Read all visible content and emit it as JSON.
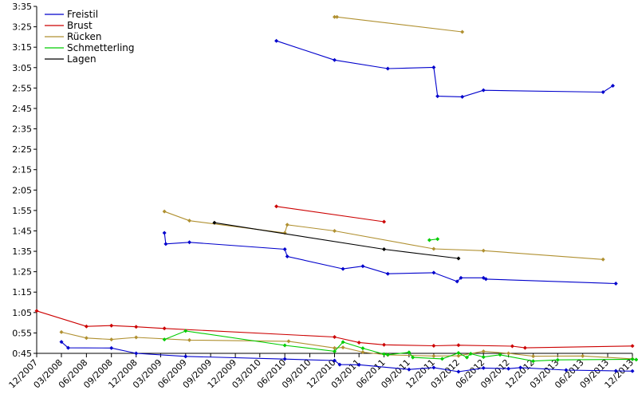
{
  "chart_data": {
    "type": "line",
    "title": "",
    "xlabel": "",
    "ylabel": "",
    "x_range": [
      "2007-12-01",
      "2013-12-01"
    ],
    "y_range_seconds": [
      45,
      215
    ],
    "y_ticks": [
      "0:45",
      "0:55",
      "1:05",
      "1:15",
      "1:25",
      "1:35",
      "1:45",
      "1:55",
      "2:05",
      "2:15",
      "2:25",
      "2:35",
      "2:45",
      "2:55",
      "3:05",
      "3:15",
      "3:25",
      "3:35"
    ],
    "x_ticks": [
      "12/2007",
      "03/2008",
      "06/2008",
      "09/2008",
      "12/2008",
      "03/2009",
      "06/2009",
      "09/2009",
      "12/2009",
      "03/2010",
      "06/2010",
      "09/2010",
      "12/2010",
      "03/2011",
      "06/2011",
      "09/2011",
      "12/2011",
      "03/2012",
      "06/2012",
      "09/2012",
      "12/2012",
      "03/2013",
      "06/2013",
      "09/2013",
      "12/2013"
    ],
    "grid": false,
    "legend_position": "top-left",
    "series": [
      {
        "name": "Freistil",
        "color": "#0000cc",
        "lines": [
          {
            "points": [
              [
                "2008-03-01",
                50.6
              ],
              [
                "2008-03-26",
                47.7
              ],
              [
                "2008-09-01",
                47.6
              ],
              [
                "2008-12-01",
                45.0
              ],
              [
                "2009-06-01",
                43.5
              ],
              [
                "2010-06-01",
                42.2
              ],
              [
                "2010-12-01",
                41.5
              ],
              [
                "2010-12-20",
                39.5
              ],
              [
                "2011-03-01",
                39.4
              ],
              [
                "2011-09-01",
                37.1
              ],
              [
                "2011-12-01",
                38.0
              ],
              [
                "2012-03-01",
                36.0
              ],
              [
                "2012-06-01",
                37.8
              ],
              [
                "2012-09-01",
                37.5
              ],
              [
                "2012-10-15",
                38.0
              ],
              [
                "2013-04-01",
                36.8
              ],
              [
                "2013-10-01",
                36.4
              ],
              [
                "2013-12-01",
                36.3
              ]
            ]
          },
          {
            "points": [
              [
                "2009-03-15",
                104.0
              ],
              [
                "2009-03-20",
                98.6
              ],
              [
                "2009-06-15",
                99.4
              ],
              [
                "2010-06-01",
                96.0
              ],
              [
                "2010-06-10",
                92.5
              ],
              [
                "2011-01-01",
                86.4
              ],
              [
                "2011-03-15",
                87.7
              ],
              [
                "2011-06-15",
                84.0
              ],
              [
                "2011-12-01",
                84.5
              ],
              [
                "2012-02-25",
                80.2
              ],
              [
                "2012-03-10",
                82.0
              ],
              [
                "2012-06-01",
                82.0
              ],
              [
                "2012-06-10",
                81.4
              ],
              [
                "2013-10-01",
                79.2
              ]
            ]
          },
          {
            "points": [
              [
                "2010-05-01",
                198.1
              ],
              [
                "2010-12-01",
                188.7
              ],
              [
                "2011-06-15",
                184.5
              ],
              [
                "2011-12-01",
                185.1
              ],
              [
                "2011-12-15",
                171.0
              ],
              [
                "2012-03-15",
                170.7
              ],
              [
                "2012-06-01",
                173.9
              ],
              [
                "2013-08-15",
                173.0
              ],
              [
                "2013-09-20",
                176.1
              ]
            ]
          }
        ]
      },
      {
        "name": "Brust",
        "color": "#cc0000",
        "lines": [
          {
            "points": [
              [
                "2007-12-01",
                65.8
              ],
              [
                "2008-06-01",
                58.2
              ],
              [
                "2008-09-01",
                58.6
              ],
              [
                "2008-12-01",
                58.0
              ],
              [
                "2009-03-15",
                57.2
              ],
              [
                "2010-12-01",
                53.0
              ],
              [
                "2011-03-01",
                50.3
              ],
              [
                "2011-06-01",
                49.2
              ],
              [
                "2011-12-01",
                48.7
              ],
              [
                "2012-03-01",
                49.0
              ],
              [
                "2012-09-15",
                48.5
              ],
              [
                "2012-11-01",
                47.7
              ],
              [
                "2013-12-01",
                48.6
              ]
            ]
          },
          {
            "points": [
              [
                "2010-05-01",
                117.0
              ],
              [
                "2011-06-01",
                109.5
              ]
            ]
          }
        ]
      },
      {
        "name": "Rücken",
        "color": "#b09030",
        "lines": [
          {
            "points": [
              [
                "2008-03-01",
                55.4
              ],
              [
                "2008-06-01",
                52.5
              ],
              [
                "2008-09-01",
                51.8
              ],
              [
                "2008-12-01",
                52.8
              ],
              [
                "2009-06-15",
                51.5
              ],
              [
                "2010-06-15",
                50.9
              ],
              [
                "2010-12-01",
                47.6
              ],
              [
                "2011-01-01",
                47.9
              ],
              [
                "2011-03-15",
                45.6
              ],
              [
                "2011-06-15",
                44.2
              ],
              [
                "2011-12-01",
                43.7
              ],
              [
                "2012-03-01",
                43.8
              ],
              [
                "2012-06-01",
                46.0
              ],
              [
                "2012-09-01",
                45.0
              ],
              [
                "2012-12-01",
                43.6
              ],
              [
                "2013-06-01",
                43.7
              ],
              [
                "2013-12-01",
                42.3
              ]
            ]
          },
          {
            "points": [
              [
                "2009-03-15",
                114.5
              ],
              [
                "2009-06-15",
                110.0
              ],
              [
                "2010-06-01",
                104.0
              ],
              [
                "2010-06-10",
                108.0
              ],
              [
                "2010-12-01",
                105.0
              ],
              [
                "2011-12-01",
                96.2
              ],
              [
                "2012-06-01",
                95.3
              ],
              [
                "2013-08-15",
                91.0
              ]
            ]
          },
          {
            "points": [
              [
                "2010-12-01",
                209.8
              ],
              [
                "2010-12-10",
                209.8
              ],
              [
                "2012-03-15",
                202.5
              ]
            ]
          }
        ]
      },
      {
        "name": "Schmetterling",
        "color": "#00cc00",
        "lines": [
          {
            "points": [
              [
                "2009-03-15",
                51.8
              ],
              [
                "2009-06-01",
                56.0
              ],
              [
                "2010-06-01",
                48.9
              ],
              [
                "2010-12-01",
                46.0
              ],
              [
                "2011-01-01",
                50.5
              ],
              [
                "2011-03-15",
                47.5
              ],
              [
                "2011-06-01",
                44.6
              ],
              [
                "2011-06-15",
                44.3
              ],
              [
                "2011-09-01",
                45.5
              ],
              [
                "2011-09-15",
                43.0
              ],
              [
                "2012-01-01",
                42.3
              ],
              [
                "2012-03-01",
                45.2
              ],
              [
                "2012-04-01",
                43.0
              ],
              [
                "2012-04-15",
                44.8
              ],
              [
                "2012-06-01",
                43.2
              ],
              [
                "2012-08-01",
                44.3
              ],
              [
                "2012-12-01",
                41.2
              ],
              [
                "2013-03-01",
                41.8
              ],
              [
                "2013-12-01",
                42.1
              ],
              [
                "2013-12-15",
                41.9
              ]
            ]
          },
          {
            "points": [
              [
                "2011-11-15",
                100.5
              ],
              [
                "2011-12-15",
                101.0
              ]
            ]
          }
        ]
      },
      {
        "name": "Lagen",
        "color": "#000000",
        "lines": [
          {
            "points": [
              [
                "2009-09-15",
                109.0
              ],
              [
                "2011-06-01",
                96.0
              ],
              [
                "2012-03-01",
                91.5
              ]
            ]
          }
        ]
      }
    ]
  }
}
